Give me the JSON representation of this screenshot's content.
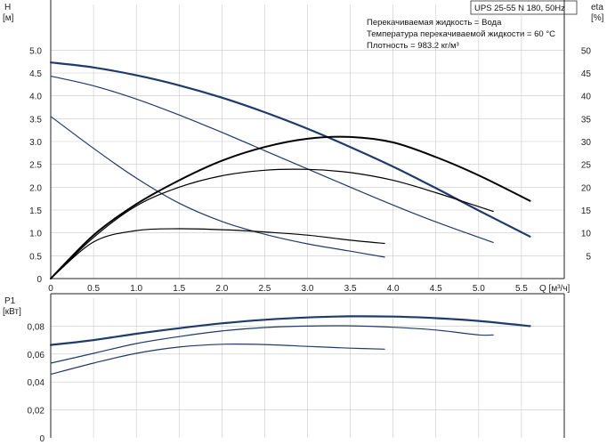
{
  "chart_data": [
    {
      "type": "line",
      "title": "UPS 25-55 N 180, 50Hz",
      "annotations": [
        "Перекачиваемая жидкость = Вода",
        "Температура перекачиваемой жидкости = 60 °C",
        "Плотность = 983.2 кг/м³"
      ],
      "ylabel": "H",
      "yunit": "[м]",
      "y2label": "eta",
      "y2unit": "[%]",
      "xlabel": "Q [м³/ч]",
      "xlim": [
        0,
        6
      ],
      "ylim": [
        0,
        6
      ],
      "y2lim": [
        0,
        60
      ],
      "xticks": [
        "0",
        "0.5",
        "1.0",
        "1.5",
        "2.0",
        "2.5",
        "3.0",
        "3.5",
        "4.0",
        "4.5",
        "5.0",
        "5.5"
      ],
      "yticks": [
        "0",
        "0.5",
        "1.0",
        "1.5",
        "2.0",
        "2.5",
        "3.0",
        "3.5",
        "4.0",
        "4.5",
        "5.0"
      ],
      "y2ticks": [
        "5",
        "10",
        "15",
        "20",
        "25",
        "30",
        "35",
        "40",
        "45",
        "50"
      ],
      "grid": true,
      "series": [
        {
          "axis": "H",
          "color": "#1f3b6b",
          "width": 2.2,
          "x": [
            0,
            0.5,
            1.0,
            1.5,
            2.0,
            2.5,
            3.0,
            3.5,
            4.0,
            4.5,
            5.0,
            5.6
          ],
          "values": [
            4.73,
            4.62,
            4.45,
            4.23,
            3.96,
            3.64,
            3.28,
            2.88,
            2.45,
            1.98,
            1.49,
            0.92
          ]
        },
        {
          "axis": "H",
          "color": "#1f3b6b",
          "width": 1.2,
          "x": [
            0,
            0.5,
            1.0,
            1.5,
            2.0,
            2.5,
            3.0,
            3.5,
            4.0,
            4.5,
            5.17
          ],
          "values": [
            4.43,
            4.22,
            3.93,
            3.58,
            3.2,
            2.8,
            2.4,
            2.0,
            1.61,
            1.24,
            0.79
          ]
        },
        {
          "axis": "H",
          "color": "#1f3b6b",
          "width": 1.2,
          "x": [
            0,
            0.5,
            1.0,
            1.5,
            2.0,
            2.5,
            3.0,
            3.5,
            3.9
          ],
          "values": [
            3.55,
            2.85,
            2.2,
            1.65,
            1.25,
            0.97,
            0.76,
            0.6,
            0.47
          ]
        },
        {
          "axis": "eta",
          "color": "#000000",
          "width": 2.0,
          "x": [
            0,
            0.5,
            1.0,
            1.5,
            2.0,
            2.5,
            3.0,
            3.5,
            4.0,
            4.5,
            5.0,
            5.6
          ],
          "values": [
            0,
            9.5,
            16.3,
            21.5,
            25.8,
            28.8,
            30.6,
            31.0,
            29.8,
            26.6,
            22.6,
            17.0
          ]
        },
        {
          "axis": "eta",
          "color": "#000000",
          "width": 1.2,
          "x": [
            0,
            0.5,
            1.0,
            1.5,
            2.0,
            2.5,
            3.0,
            3.5,
            4.0,
            4.5,
            5.17
          ],
          "values": [
            0,
            9.0,
            15.9,
            20.0,
            22.5,
            23.7,
            23.9,
            23.2,
            21.5,
            18.8,
            14.7
          ]
        },
        {
          "axis": "eta",
          "color": "#000000",
          "width": 1.2,
          "x": [
            0,
            0.5,
            1.0,
            1.5,
            2.0,
            2.5,
            3.0,
            3.5,
            3.9
          ],
          "values": [
            0,
            8.0,
            10.5,
            10.9,
            10.7,
            10.2,
            9.5,
            8.4,
            7.7
          ]
        }
      ]
    },
    {
      "type": "line",
      "ylabel": "P1",
      "yunit": "[кВт]",
      "xlim": [
        0,
        6
      ],
      "ylim": [
        0,
        0.1
      ],
      "yticks": [
        "0",
        "0,02",
        "0,04",
        "0,06",
        "0,08"
      ],
      "grid": true,
      "series": [
        {
          "color": "#1f3b6b",
          "width": 2.2,
          "x": [
            0,
            0.5,
            1.0,
            1.5,
            2.0,
            2.5,
            3.0,
            3.5,
            4.0,
            4.5,
            5.0,
            5.6
          ],
          "values": [
            0.0665,
            0.07,
            0.0745,
            0.0785,
            0.082,
            0.0845,
            0.0862,
            0.087,
            0.0868,
            0.0857,
            0.0837,
            0.08
          ]
        },
        {
          "color": "#1f3b6b",
          "width": 1.2,
          "x": [
            0,
            0.5,
            1.0,
            1.5,
            2.0,
            2.5,
            3.0,
            3.5,
            4.0,
            4.5,
            5.0,
            5.17
          ],
          "values": [
            0.0535,
            0.0605,
            0.0675,
            0.0725,
            0.0765,
            0.079,
            0.08,
            0.0802,
            0.0792,
            0.0772,
            0.0737,
            0.0737
          ]
        },
        {
          "color": "#1f3b6b",
          "width": 1.2,
          "x": [
            0,
            0.5,
            1.0,
            1.5,
            2.0,
            2.5,
            3.0,
            3.5,
            3.9
          ],
          "values": [
            0.0455,
            0.0535,
            0.0605,
            0.065,
            0.067,
            0.0668,
            0.0655,
            0.0642,
            0.0635
          ]
        }
      ]
    }
  ]
}
